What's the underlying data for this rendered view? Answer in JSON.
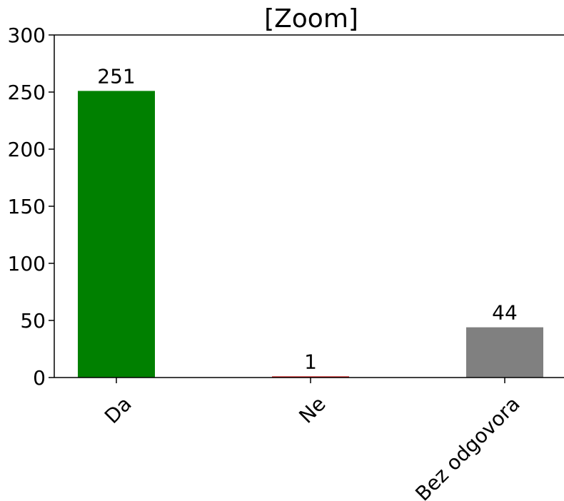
{
  "title_visible": "[Zoom]",
  "chart_data": {
    "type": "bar",
    "title": "[Zoom]",
    "categories": [
      "Da",
      "Ne",
      "Bez odgovora"
    ],
    "values": [
      251,
      1,
      44
    ],
    "data_labels": [
      "251",
      "1",
      "44"
    ],
    "bar_colors": [
      "#008000",
      "#cc0000",
      "#808080"
    ],
    "ylim": [
      0,
      300
    ],
    "yticks": [
      0,
      50,
      100,
      150,
      200,
      250,
      300
    ],
    "ytick_labels": [
      "0",
      "50",
      "100",
      "150",
      "200",
      "250",
      "300"
    ],
    "xtick_rotation_deg": 45,
    "grid": false,
    "legend": "none"
  }
}
